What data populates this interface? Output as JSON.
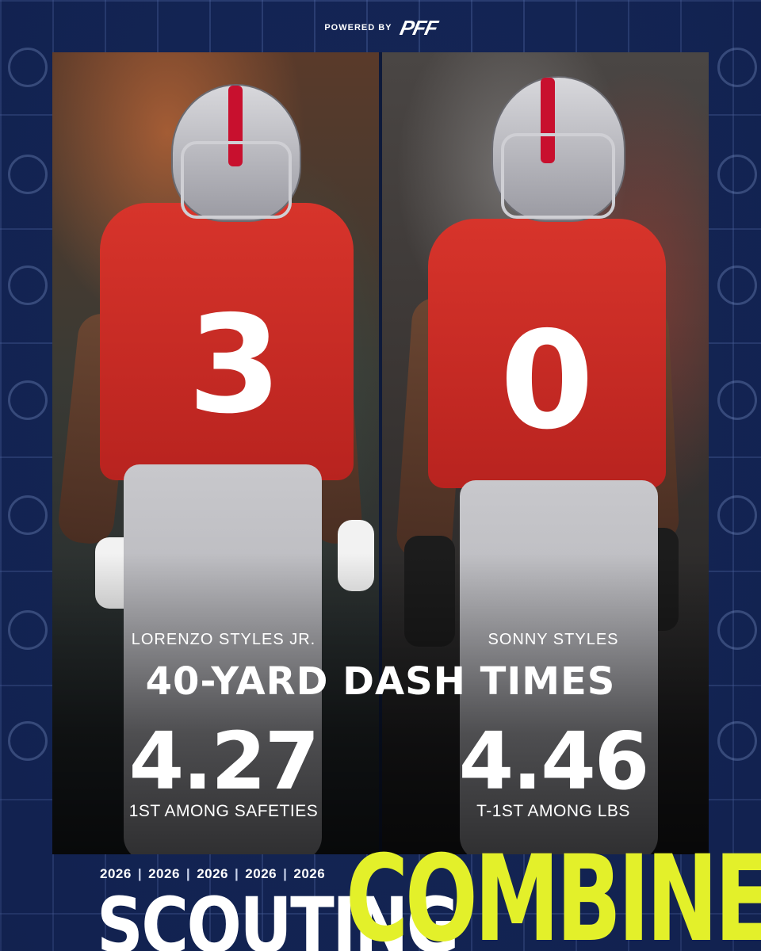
{
  "header": {
    "powered_by": "POWERED BY",
    "brand": "PFF"
  },
  "players": [
    {
      "name": "LORENZO STYLES JR.",
      "jersey_number": "3",
      "time": "4.27",
      "rank": "1ST AMONG SAFETIES"
    },
    {
      "name": "SONNY STYLES",
      "jersey_number": "0",
      "time": "4.46",
      "rank": "T-1ST AMONG LBS"
    }
  ],
  "title": "40-YARD DASH TIMES",
  "footer": {
    "years": [
      "2026",
      "2026",
      "2026",
      "2026",
      "2026"
    ],
    "separator": "|",
    "word1": "SCOUTING",
    "word2": "COMBINE"
  },
  "colors": {
    "background": "#15285a",
    "jersey_red": "#c8102e",
    "combine_yellow": "#e3f02a"
  }
}
